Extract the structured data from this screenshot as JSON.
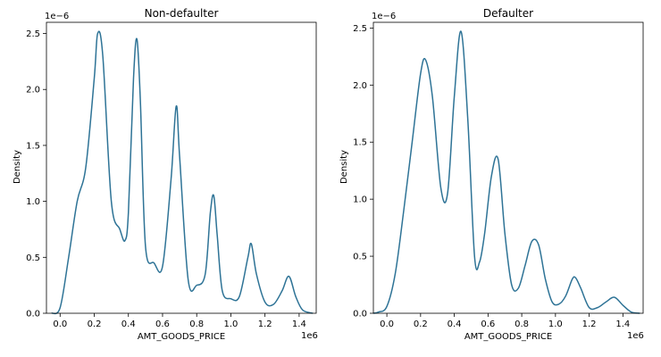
{
  "chart_data": [
    {
      "type": "line",
      "title": "Non-defaulter",
      "xlabel": "AMT_GOODS_PRICE",
      "ylabel": "Density",
      "x_offset_label": "1e6",
      "y_offset_label": "1e−6",
      "xlim": [
        -0.08,
        1.5
      ],
      "ylim": [
        0,
        2.6
      ],
      "x_ticks": [
        "0.0",
        "0.2",
        "0.4",
        "0.6",
        "0.8",
        "1.0",
        "1.2",
        "1.4"
      ],
      "y_ticks": [
        "0.0",
        "0.5",
        "1.0",
        "1.5",
        "2.0",
        "2.5"
      ],
      "grid": false,
      "color": "#2e7396",
      "series": [
        {
          "x": [
            -0.05,
            0.0,
            0.05,
            0.1,
            0.15,
            0.2,
            0.22,
            0.25,
            0.3,
            0.35,
            0.38,
            0.4,
            0.43,
            0.45,
            0.47,
            0.5,
            0.55,
            0.6,
            0.65,
            0.68,
            0.7,
            0.75,
            0.8,
            0.85,
            0.88,
            0.9,
            0.92,
            0.95,
            1.0,
            1.05,
            1.1,
            1.12,
            1.15,
            1.2,
            1.25,
            1.3,
            1.34,
            1.38,
            1.42,
            1.48
          ],
          "y": [
            0.0,
            0.05,
            0.5,
            1.0,
            1.3,
            2.1,
            2.5,
            2.3,
            1.0,
            0.75,
            0.65,
            0.9,
            2.1,
            2.45,
            1.9,
            0.6,
            0.45,
            0.42,
            1.2,
            1.85,
            1.4,
            0.3,
            0.25,
            0.35,
            0.9,
            1.05,
            0.7,
            0.2,
            0.13,
            0.15,
            0.5,
            0.62,
            0.35,
            0.1,
            0.08,
            0.2,
            0.33,
            0.15,
            0.03,
            0.0
          ]
        }
      ]
    },
    {
      "type": "line",
      "title": "Defaulter",
      "xlabel": "AMT_GOODS_PRICE",
      "ylabel": "Density",
      "x_offset_label": "1e6",
      "y_offset_label": "1e−6",
      "xlim": [
        -0.08,
        1.52
      ],
      "ylim": [
        0,
        2.55
      ],
      "x_ticks": [
        "0.0",
        "0.2",
        "0.4",
        "0.6",
        "0.8",
        "1.0",
        "1.2",
        "1.4"
      ],
      "y_ticks": [
        "0.0",
        "0.5",
        "1.0",
        "1.5",
        "2.0",
        "2.5"
      ],
      "grid": false,
      "color": "#2e7396",
      "series": [
        {
          "x": [
            -0.08,
            -0.05,
            0.0,
            0.05,
            0.1,
            0.15,
            0.2,
            0.23,
            0.27,
            0.32,
            0.36,
            0.4,
            0.44,
            0.48,
            0.52,
            0.55,
            0.58,
            0.62,
            0.66,
            0.7,
            0.74,
            0.78,
            0.82,
            0.86,
            0.9,
            0.94,
            0.98,
            1.02,
            1.06,
            1.1,
            1.12,
            1.15,
            1.2,
            1.25,
            1.3,
            1.35,
            1.4,
            1.45,
            1.5
          ],
          "y": [
            0.0,
            0.01,
            0.06,
            0.35,
            0.9,
            1.5,
            2.1,
            2.22,
            1.9,
            1.1,
            1.05,
            1.9,
            2.47,
            1.7,
            0.5,
            0.45,
            0.7,
            1.2,
            1.35,
            0.7,
            0.25,
            0.22,
            0.42,
            0.63,
            0.6,
            0.3,
            0.1,
            0.08,
            0.15,
            0.3,
            0.31,
            0.22,
            0.05,
            0.05,
            0.1,
            0.14,
            0.07,
            0.01,
            0.0
          ]
        }
      ]
    }
  ]
}
